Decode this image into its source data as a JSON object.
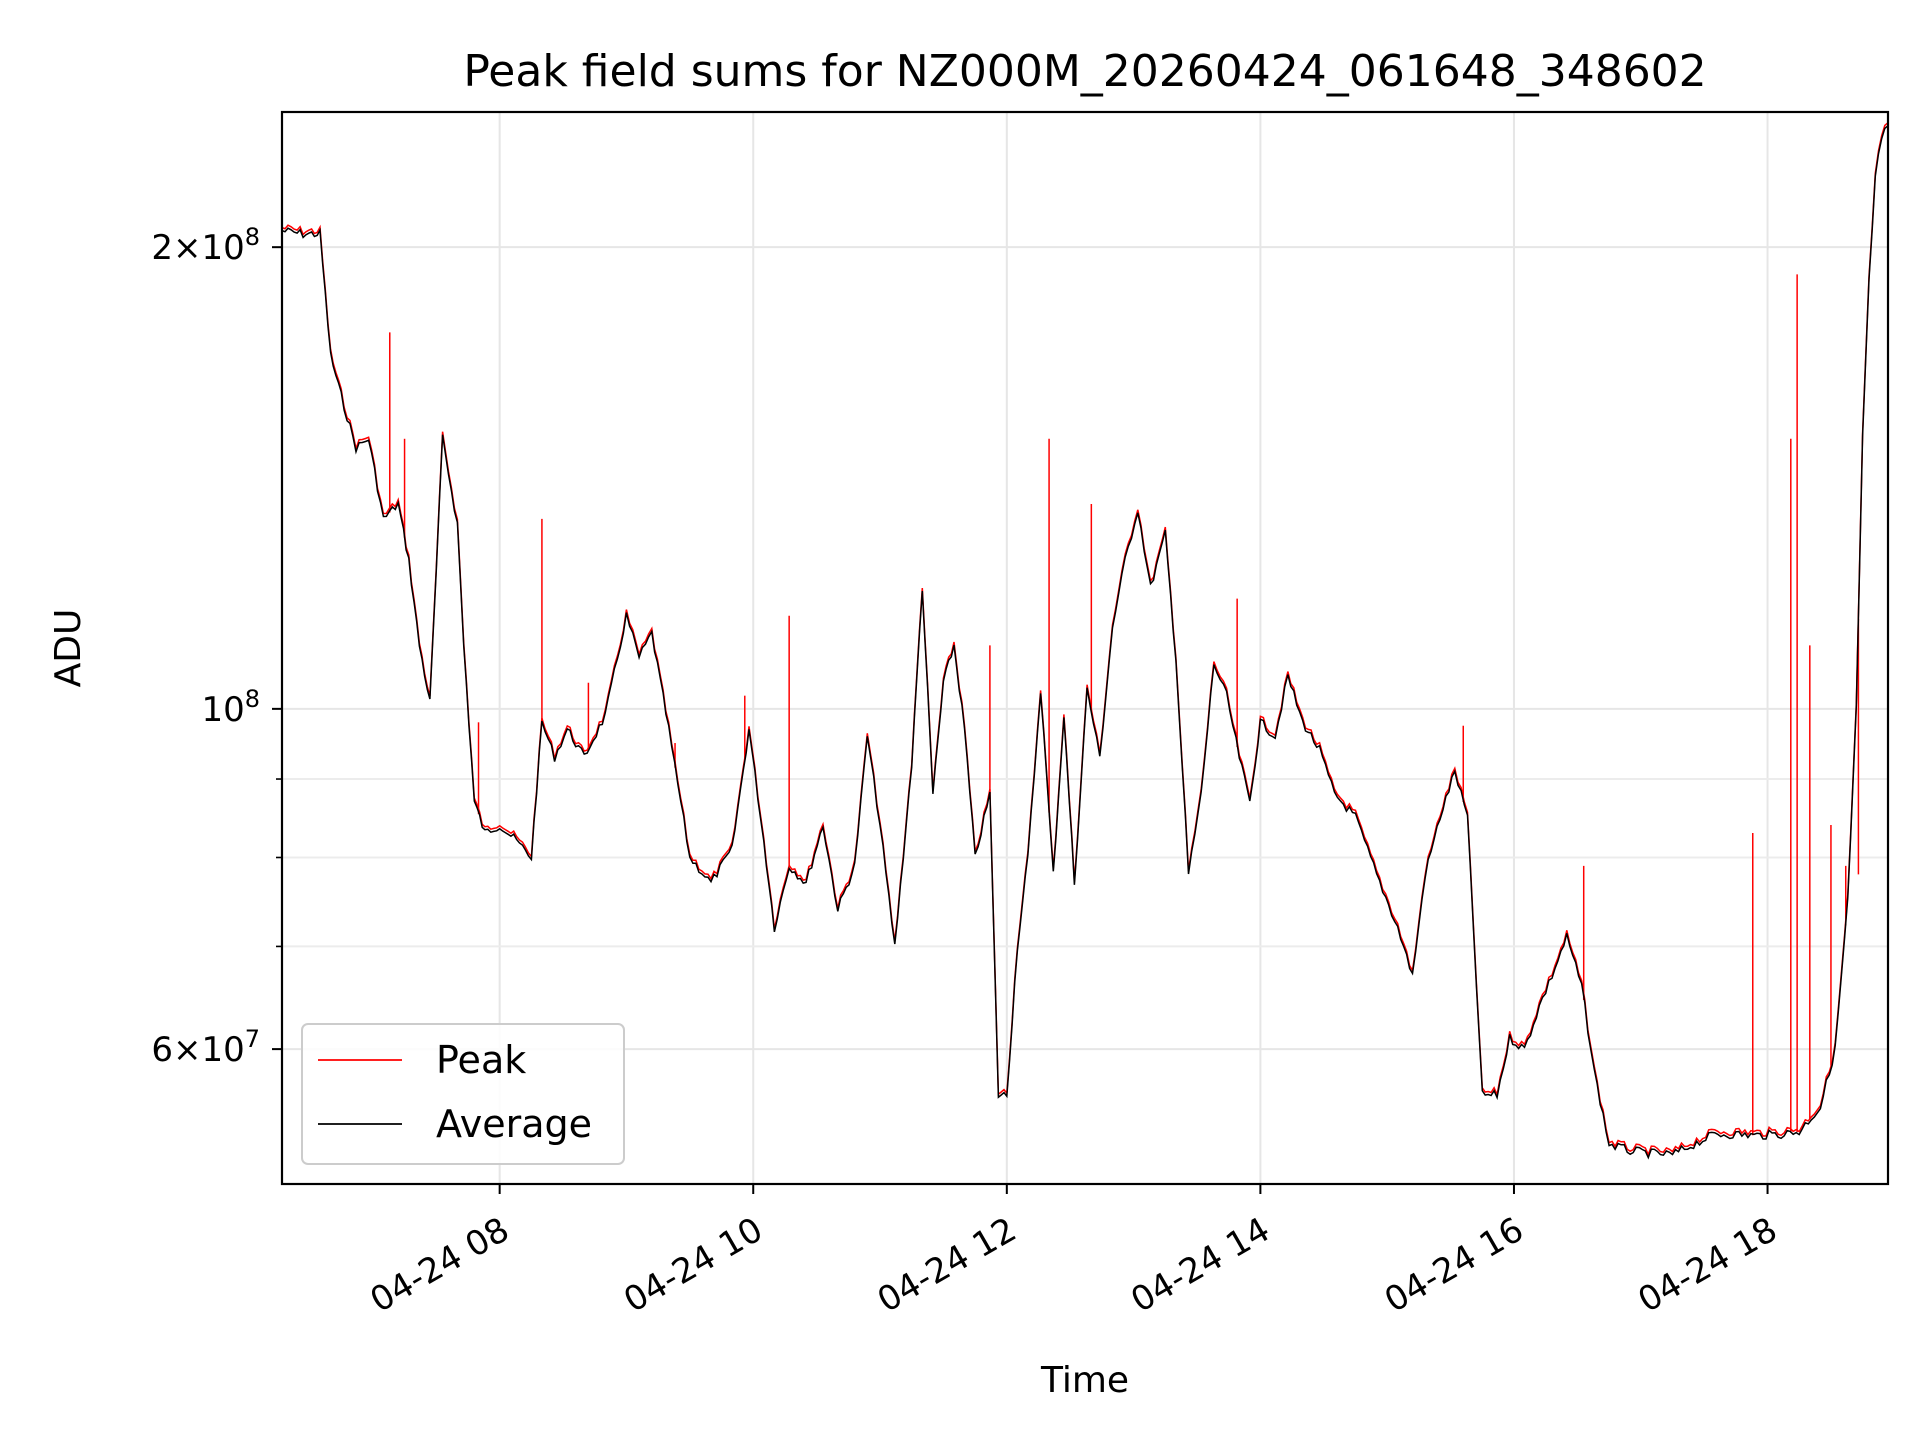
{
  "chart_data": {
    "type": "line",
    "title": "Peak field sums for NZ000M_20260424_061648_348602",
    "xlabel": "Time",
    "ylabel": "ADU",
    "yscale": "log",
    "ylim": [
      49000000,
      245000000
    ],
    "xlim": [
      "04-24 06:17",
      "04-24 18:57"
    ],
    "grid": true,
    "legend_position": "lower-left",
    "x_ticks": [
      "04-24 08",
      "04-24 10",
      "04-24 12",
      "04-24 14",
      "04-24 16",
      "04-24 18"
    ],
    "y_ticks": [
      {
        "value": 200000000,
        "mant": "2",
        "exp": "8"
      },
      {
        "value": 100000000,
        "mant": "",
        "exp": "8"
      },
      {
        "value": 60000000,
        "mant": "6",
        "exp": "7"
      }
    ],
    "y_minor_ticks": [
      70000000,
      80000000,
      90000000
    ],
    "series": [
      {
        "name": "Peak",
        "color": "#ff0000"
      },
      {
        "name": "Average",
        "color": "#000000"
      }
    ],
    "average_points": [
      [
        "04-24 06:17",
        205000000
      ],
      [
        "04-24 06:27",
        204000000
      ],
      [
        "04-24 06:35",
        204000000
      ],
      [
        "04-24 06:40",
        170000000
      ],
      [
        "04-24 06:45",
        160000000
      ],
      [
        "04-24 06:52",
        148000000
      ],
      [
        "04-24 06:58",
        150000000
      ],
      [
        "04-24 07:05",
        133000000
      ],
      [
        "04-24 07:12",
        136000000
      ],
      [
        "04-24 07:17",
        125000000
      ],
      [
        "04-24 07:22",
        110000000
      ],
      [
        "04-24 07:27",
        101000000
      ],
      [
        "04-24 07:33",
        150000000
      ],
      [
        "04-24 07:40",
        132000000
      ],
      [
        "04-24 07:43",
        110000000
      ],
      [
        "04-24 07:48",
        87000000
      ],
      [
        "04-24 07:53",
        83000000
      ],
      [
        "04-24 08:00",
        84000000
      ],
      [
        "04-24 08:08",
        82000000
      ],
      [
        "04-24 08:15",
        80000000
      ],
      [
        "04-24 08:20",
        98000000
      ],
      [
        "04-24 08:26",
        93000000
      ],
      [
        "04-24 08:32",
        97000000
      ],
      [
        "04-24 08:40",
        93000000
      ],
      [
        "04-24 08:50",
        99000000
      ],
      [
        "04-24 09:00",
        115000000
      ],
      [
        "04-24 09:06",
        108000000
      ],
      [
        "04-24 09:12",
        112000000
      ],
      [
        "04-24 09:20",
        97000000
      ],
      [
        "04-24 09:30",
        80000000
      ],
      [
        "04-24 09:40",
        77000000
      ],
      [
        "04-24 09:50",
        81000000
      ],
      [
        "04-24 09:58",
        97000000
      ],
      [
        "04-24 10:05",
        82000000
      ],
      [
        "04-24 10:10",
        72000000
      ],
      [
        "04-24 10:17",
        79000000
      ],
      [
        "04-24 10:25",
        77000000
      ],
      [
        "04-24 10:33",
        84000000
      ],
      [
        "04-24 10:40",
        74000000
      ],
      [
        "04-24 10:48",
        79000000
      ],
      [
        "04-24 10:54",
        96000000
      ],
      [
        "04-24 11:00",
        84000000
      ],
      [
        "04-24 11:07",
        70000000
      ],
      [
        "04-24 11:15",
        92000000
      ],
      [
        "04-24 11:20",
        120000000
      ],
      [
        "04-24 11:25",
        88000000
      ],
      [
        "04-24 11:30",
        104000000
      ],
      [
        "04-24 11:35",
        110000000
      ],
      [
        "04-24 11:40",
        97000000
      ],
      [
        "04-24 11:45",
        80000000
      ],
      [
        "04-24 11:52",
        88000000
      ],
      [
        "04-24 11:56",
        56000000
      ],
      [
        "04-24 12:00",
        56000000
      ],
      [
        "04-24 12:05",
        70000000
      ],
      [
        "04-24 12:10",
        80000000
      ],
      [
        "04-24 12:16",
        103000000
      ],
      [
        "04-24 12:22",
        78000000
      ],
      [
        "04-24 12:27",
        99000000
      ],
      [
        "04-24 12:32",
        77000000
      ],
      [
        "04-24 12:38",
        103000000
      ],
      [
        "04-24 12:44",
        93000000
      ],
      [
        "04-24 12:50",
        113000000
      ],
      [
        "04-24 12:56",
        125000000
      ],
      [
        "04-24 13:02",
        135000000
      ],
      [
        "04-24 13:08",
        120000000
      ],
      [
        "04-24 13:15",
        130000000
      ],
      [
        "04-24 13:20",
        108000000
      ],
      [
        "04-24 13:26",
        78000000
      ],
      [
        "04-24 13:32",
        88000000
      ],
      [
        "04-24 13:38",
        107000000
      ],
      [
        "04-24 13:44",
        102000000
      ],
      [
        "04-24 13:50",
        93000000
      ],
      [
        "04-24 13:55",
        87000000
      ],
      [
        "04-24 14:00",
        98000000
      ],
      [
        "04-24 14:07",
        96000000
      ],
      [
        "04-24 14:13",
        105000000
      ],
      [
        "04-24 14:20",
        98000000
      ],
      [
        "04-24 14:28",
        94000000
      ],
      [
        "04-24 14:35",
        88000000
      ],
      [
        "04-24 14:45",
        85000000
      ],
      [
        "04-24 14:55",
        78000000
      ],
      [
        "04-24 15:05",
        72000000
      ],
      [
        "04-24 15:12",
        67000000
      ],
      [
        "04-24 15:18",
        78000000
      ],
      [
        "04-24 15:25",
        85000000
      ],
      [
        "04-24 15:32",
        91000000
      ],
      [
        "04-24 15:38",
        85000000
      ],
      [
        "04-24 15:45",
        56000000
      ],
      [
        "04-24 15:52",
        56000000
      ],
      [
        "04-24 15:58",
        61000000
      ],
      [
        "04-24 16:05",
        60000000
      ],
      [
        "04-24 16:12",
        64000000
      ],
      [
        "04-24 16:18",
        67000000
      ],
      [
        "04-24 16:25",
        71000000
      ],
      [
        "04-24 16:32",
        66000000
      ],
      [
        "04-24 16:38",
        58000000
      ],
      [
        "04-24 16:45",
        52000000
      ],
      [
        "04-24 16:55",
        51500000
      ],
      [
        "04-24 17:05",
        51300000
      ],
      [
        "04-24 17:15",
        51200000
      ],
      [
        "04-24 17:25",
        52000000
      ],
      [
        "04-24 17:35",
        52800000
      ],
      [
        "04-24 17:45",
        52800000
      ],
      [
        "04-24 17:55",
        52700000
      ],
      [
        "04-24 18:05",
        52800000
      ],
      [
        "04-24 18:15",
        53000000
      ],
      [
        "04-24 18:25",
        55000000
      ],
      [
        "04-24 18:32",
        60000000
      ],
      [
        "04-24 18:38",
        75000000
      ],
      [
        "04-24 18:42",
        100000000
      ],
      [
        "04-24 18:45",
        150000000
      ],
      [
        "04-24 18:48",
        190000000
      ],
      [
        "04-24 18:51",
        222000000
      ],
      [
        "04-24 18:54",
        236000000
      ],
      [
        "04-24 18:57",
        240000000
      ]
    ],
    "peak_spikes": [
      [
        "04-24 07:08",
        176000000
      ],
      [
        "04-24 07:15",
        150000000
      ],
      [
        "04-24 07:50",
        98000000
      ],
      [
        "04-24 08:20",
        133000000
      ],
      [
        "04-24 08:42",
        104000000
      ],
      [
        "04-24 09:23",
        95000000
      ],
      [
        "04-24 09:56",
        102000000
      ],
      [
        "04-24 10:17",
        115000000
      ],
      [
        "04-24 11:52",
        110000000
      ],
      [
        "04-24 12:20",
        150000000
      ],
      [
        "04-24 12:40",
        136000000
      ],
      [
        "04-24 13:49",
        118000000
      ],
      [
        "04-24 15:36",
        97500000
      ],
      [
        "04-24 16:33",
        79000000
      ],
      [
        "04-24 17:53",
        83000000
      ],
      [
        "04-24 18:11",
        150000000
      ],
      [
        "04-24 18:14",
        192000000
      ],
      [
        "04-24 18:20",
        110000000
      ],
      [
        "04-24 18:30",
        84000000
      ],
      [
        "04-24 18:37",
        79000000
      ],
      [
        "04-24 18:43",
        78000000
      ]
    ]
  }
}
